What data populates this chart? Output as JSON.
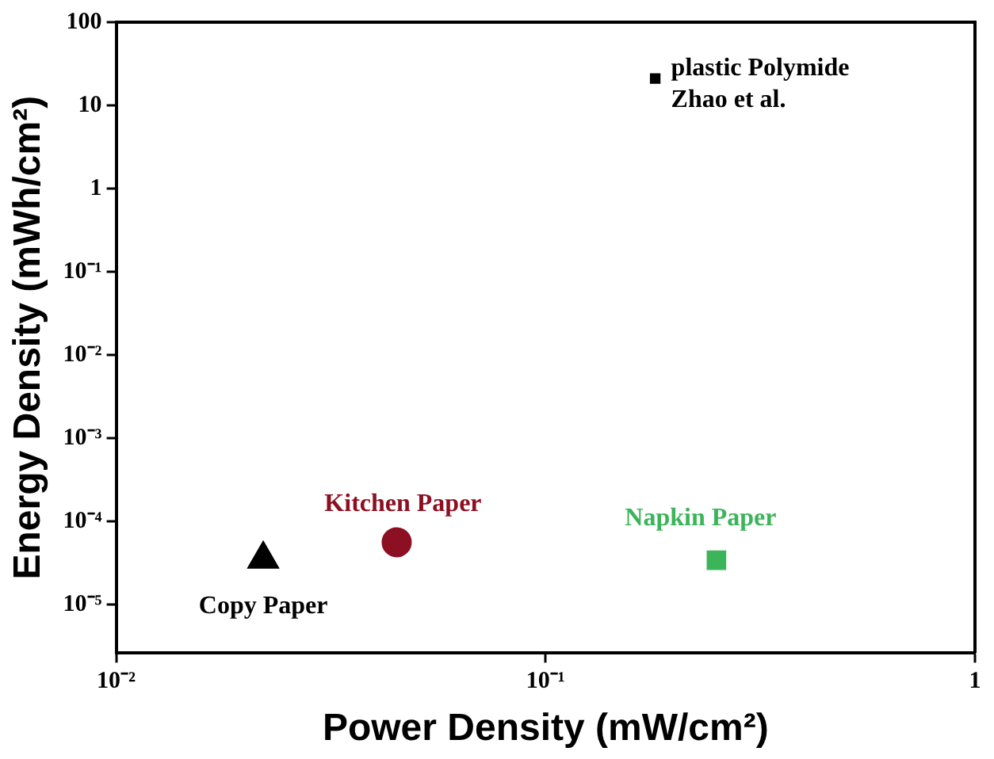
{
  "chart_data": {
    "type": "scatter",
    "xlabel": "Power Density (mW/cm²)",
    "ylabel": "Energy Density (mWh/cm²)",
    "log": "xy",
    "grid": false,
    "legend": false,
    "xlim": [
      0.01,
      1
    ],
    "xticks": [
      {
        "value": 0.01,
        "label": "10⁻²"
      },
      {
        "value": 0.1,
        "label": "10⁻¹"
      },
      {
        "value": 1,
        "label": "1"
      }
    ],
    "ylim": [
      2.6e-06,
      100
    ],
    "yticks": [
      100,
      10,
      1,
      {
        "value": 0.1,
        "label": "10⁻¹"
      },
      {
        "value": 0.01,
        "label": "10⁻²"
      },
      {
        "value": 0.001,
        "label": "10⁻³"
      },
      {
        "value": 0.0001,
        "label": "10⁻⁴"
      },
      {
        "value": 1e-05,
        "label": "10⁻⁵"
      }
    ],
    "series": [
      {
        "name": "Copy Paper",
        "color": "#000000",
        "marker": "triangle",
        "x": [
          0.022
        ],
        "values": [
          3.5e-05
        ]
      },
      {
        "name": "Kitchen Paper",
        "color": "#8c1022",
        "marker": "circle",
        "x": [
          0.045
        ],
        "values": [
          5.6e-05
        ]
      },
      {
        "name": "Napkin Paper",
        "color": "#3cb55a",
        "marker": "square",
        "x": [
          0.25
        ],
        "values": [
          3.4e-05
        ]
      },
      {
        "name": "plastic Polymide Zhao et al.",
        "color": "#000000",
        "marker": "square",
        "x": [
          0.18
        ],
        "values": [
          21
        ]
      }
    ]
  }
}
